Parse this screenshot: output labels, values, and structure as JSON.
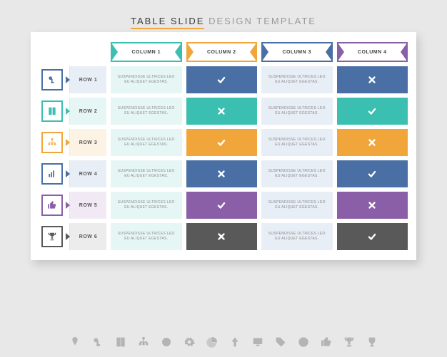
{
  "title": {
    "strong": "TABLE  SLIDE",
    "light": "DESIGN TEMPLATE",
    "strong_color": "#3a3a3a",
    "light_color": "#9a9a9a"
  },
  "slide": {
    "bg": "#ffffff",
    "shadow": "rgba(0,0,0,.15)"
  },
  "page_bg": "#e8e8e8",
  "placeholder_text": "SUSPENDISSE ULTRICES LEO EU ALIQUET EGESTAS.",
  "columns": [
    {
      "label": "COLUMN 1",
      "color": "#3bbfb0",
      "tint": "#e6f6f4"
    },
    {
      "label": "COLUMN 2",
      "color": "#f0a63a",
      "tint": "#fdf3e4"
    },
    {
      "label": "COLUMN 3",
      "color": "#4a6fa5",
      "tint": "#e8eef6"
    },
    {
      "label": "COLUMN 4",
      "color": "#8a5fa8",
      "tint": "#f1eaf5"
    }
  ],
  "rows": [
    {
      "label": "ROW 1",
      "color": "#4a6fa5",
      "icon": "key",
      "tint": "#e8eef6",
      "cells": [
        "text",
        "check",
        "text",
        "cross"
      ]
    },
    {
      "label": "ROW 2",
      "color": "#3bbfb0",
      "icon": "book",
      "tint": "#e6f6f4",
      "cells": [
        "text",
        "cross",
        "text",
        "check"
      ]
    },
    {
      "label": "ROW 3",
      "color": "#f0a63a",
      "icon": "tree",
      "tint": "#fdf3e4",
      "cells": [
        "text",
        "check",
        "text",
        "cross"
      ]
    },
    {
      "label": "ROW 4",
      "color": "#4a6fa5",
      "icon": "bars",
      "tint": "#e8eef6",
      "cells": [
        "text",
        "cross",
        "text",
        "check"
      ]
    },
    {
      "label": "ROW 5",
      "color": "#8a5fa8",
      "icon": "thumb",
      "tint": "#f1eaf5",
      "cells": [
        "text",
        "check",
        "text",
        "cross"
      ]
    },
    {
      "label": "ROW 6",
      "color": "#595959",
      "icon": "trophy",
      "tint": "#ececec",
      "cells": [
        "text",
        "cross",
        "text",
        "check"
      ]
    }
  ],
  "mark_colors": {
    "check_fill_mode": "row",
    "cross_color": "#fff"
  },
  "bottom_icons": [
    "pin",
    "key",
    "book",
    "tree",
    "target",
    "gear",
    "pie",
    "arrow",
    "screen",
    "tag",
    "bullseye",
    "thumb",
    "trophy",
    "cup"
  ]
}
